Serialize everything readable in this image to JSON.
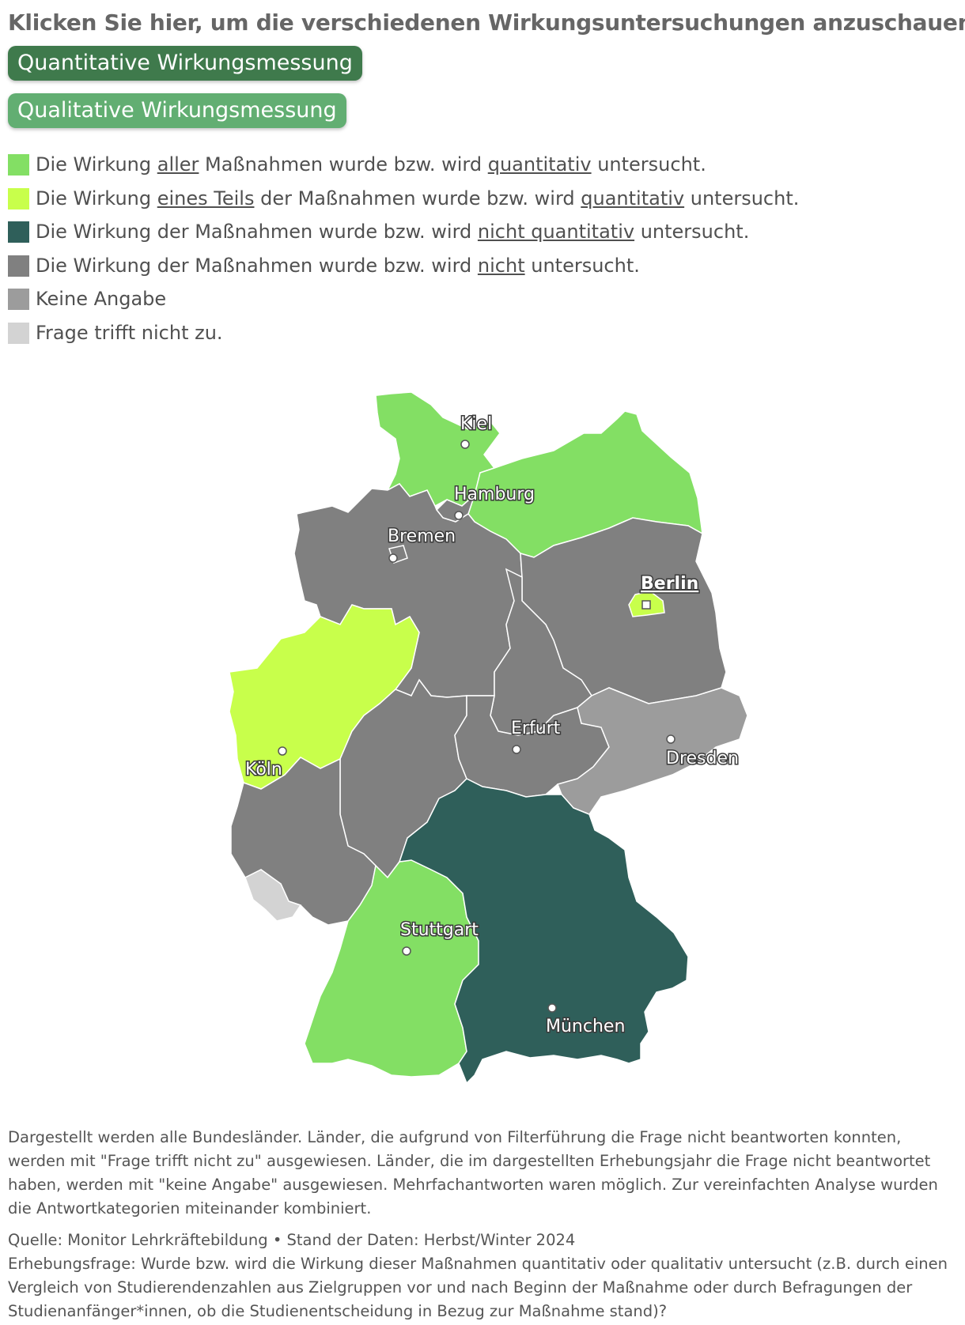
{
  "heading": "Klicken Sie hier, um die verschiedenen Wirkungsuntersuchungen anzuschauen:",
  "buttons": {
    "quantitative": "Quantitative Wirkungsmessung",
    "qualitative": "Qualitative Wirkungsmessung"
  },
  "legend": [
    {
      "color": "#83df64",
      "pre": "Die Wirkung ",
      "u": "aller",
      "mid": " Maßnahmen wurde bzw. wird ",
      "u2": "quantitativ",
      "post": " untersucht."
    },
    {
      "color": "#c8ff4b",
      "pre": "Die Wirkung ",
      "u": "eines Teils",
      "mid": " der Maßnahmen wurde bzw. wird ",
      "u2": "quantitativ",
      "post": " untersucht."
    },
    {
      "color": "#2f5f5a",
      "pre": "Die Wirkung der Maßnahmen wurde bzw. wird ",
      "u": "nicht quantitativ",
      "mid": " untersucht.",
      "u2": "",
      "post": ""
    },
    {
      "color": "#808080",
      "pre": "Die Wirkung der Maßnahmen wurde bzw. wird ",
      "u": "nicht",
      "mid": " untersucht.",
      "u2": "",
      "post": ""
    },
    {
      "color": "#9c9c9c",
      "pre": "Keine Angabe",
      "u": "",
      "mid": "",
      "u2": "",
      "post": ""
    },
    {
      "color": "#d3d3d3",
      "pre": "Frage trifft nicht zu.",
      "u": "",
      "mid": "",
      "u2": "",
      "post": ""
    }
  ],
  "map": {
    "states": [
      {
        "name": "Schleswig-Holstein",
        "category": "aller quantitativ",
        "color": "#83df64"
      },
      {
        "name": "Hamburg",
        "category": "nicht untersucht",
        "color": "#808080"
      },
      {
        "name": "Mecklenburg-Vorpommern",
        "category": "aller quantitativ",
        "color": "#83df64"
      },
      {
        "name": "Niedersachsen",
        "category": "nicht untersucht",
        "color": "#808080"
      },
      {
        "name": "Bremen",
        "category": "nicht untersucht",
        "color": "#808080"
      },
      {
        "name": "Berlin",
        "category": "eines Teils quantitativ",
        "color": "#c8ff4b"
      },
      {
        "name": "Brandenburg",
        "category": "nicht untersucht",
        "color": "#808080"
      },
      {
        "name": "Sachsen-Anhalt",
        "category": "nicht untersucht",
        "color": "#808080"
      },
      {
        "name": "Nordrhein-Westfalen",
        "category": "eines Teils quantitativ",
        "color": "#c8ff4b"
      },
      {
        "name": "Hessen",
        "category": "nicht untersucht",
        "color": "#808080"
      },
      {
        "name": "Thüringen",
        "category": "nicht untersucht",
        "color": "#808080"
      },
      {
        "name": "Sachsen",
        "category": "Keine Angabe",
        "color": "#9c9c9c"
      },
      {
        "name": "Rheinland-Pfalz",
        "category": "nicht untersucht",
        "color": "#808080"
      },
      {
        "name": "Saarland",
        "category": "Frage trifft nicht zu",
        "color": "#d3d3d3"
      },
      {
        "name": "Baden-Württemberg",
        "category": "aller quantitativ",
        "color": "#83df64"
      },
      {
        "name": "Bayern",
        "category": "nicht quantitativ",
        "color": "#2f5f5a"
      }
    ],
    "cities": {
      "kiel": "Kiel",
      "hamburg": "Hamburg",
      "bremen": "Bremen",
      "berlin": "Berlin",
      "koeln": "Köln",
      "erfurt": "Erfurt",
      "dresden": "Dresden",
      "stuttgart": "Stuttgart",
      "muenchen": "München"
    }
  },
  "footnote": "Dargestellt werden alle Bundesländer. Länder, die aufgrund von Filterführung die Frage nicht beantworten konnten, werden mit \"Frage trifft nicht zu\" ausgewiesen. Länder, die im dargestellten Erhebungsjahr die Frage nicht beantwortet haben, werden mit \"keine Angabe\" ausgewiesen. Mehrfachantworten waren möglich. Zur vereinfachten Analyse wurden die Antwortkategorien miteinander kombiniert.",
  "source": {
    "line1": "Quelle: Monitor Lehrkräftebildung • Stand der Daten: Herbst/Winter 2024",
    "line2": "Erhebungsfrage: Wurde bzw. wird die Wirkung dieser Maßnahmen quantitativ oder qualitativ untersucht (z.B. durch einen Vergleich von Studierendenzahlen aus Zielgruppen vor und nach Beginn der Maßnahme oder durch Befragungen der Studienanfänger*innen, ob die Studienentscheidung in Bezug zur Maßnahme stand)?"
  }
}
